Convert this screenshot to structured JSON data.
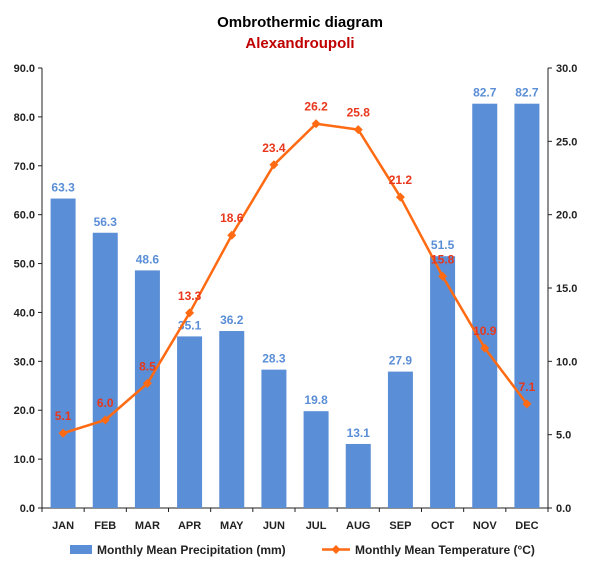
{
  "chart_data": {
    "type": "bar+line",
    "title": "Ombrothermic diagram",
    "subtitle": "Alexandroupoli",
    "categories": [
      "JAN",
      "FEB",
      "MAR",
      "APR",
      "MAY",
      "JUN",
      "JUL",
      "AUG",
      "SEP",
      "OCT",
      "NOV",
      "DEC"
    ],
    "series": [
      {
        "name": "Monthly Mean Precipitation (mm)",
        "type": "bar",
        "axis": "left",
        "values": [
          63.3,
          56.3,
          48.6,
          35.1,
          36.2,
          28.3,
          19.8,
          13.1,
          27.9,
          51.5,
          82.7,
          82.7
        ],
        "labels": [
          "63.3",
          "56.3",
          "48.6",
          "35.1",
          "36.2",
          "28.3",
          "19.8",
          "13.1",
          "27.9",
          "51.5",
          "82.7",
          "82.7"
        ]
      },
      {
        "name": "Monthly Mean Temperature (°C)",
        "type": "line",
        "axis": "right",
        "values": [
          5.1,
          6.0,
          8.5,
          13.3,
          18.6,
          23.4,
          26.2,
          25.8,
          21.2,
          15.8,
          10.9,
          7.1
        ],
        "labels": [
          "5.1",
          "6.0",
          "8.5",
          "13.3",
          "18.6",
          "23.4",
          "26.2",
          "25.8",
          "21.2",
          "15.8",
          "10.9",
          "7.1"
        ]
      }
    ],
    "y_left": {
      "ylim": [
        0,
        90
      ],
      "ticks": [
        0,
        10,
        20,
        30,
        40,
        50,
        60,
        70,
        80,
        90
      ],
      "tick_labels": [
        "0.0",
        "10.0",
        "20.0",
        "30.0",
        "40.0",
        "50.0",
        "60.0",
        "70.0",
        "80.0",
        "90.0"
      ]
    },
    "y_right": {
      "ylim": [
        0,
        30
      ],
      "ticks": [
        0,
        5,
        10,
        15,
        20,
        25,
        30
      ],
      "tick_labels": [
        "0.0",
        "5.0",
        "10.0",
        "15.0",
        "20.0",
        "25.0",
        "30.0"
      ]
    },
    "grid": false,
    "legend_position": "bottom",
    "colors": {
      "bar": "#5a8ed6",
      "bar_label": "#5a8ed6",
      "line": "#ff6a13",
      "line_label": "#e8371c",
      "subtitle": "#c00000",
      "axis": "#222222"
    }
  }
}
